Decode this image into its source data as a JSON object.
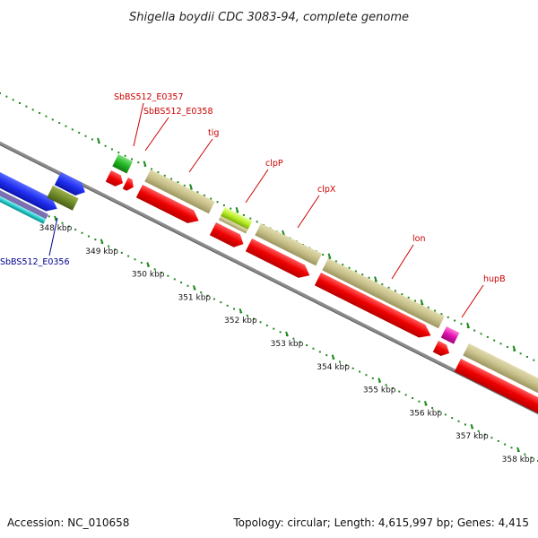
{
  "title": "Shigella boydii CDC 3083-94, complete genome",
  "footer": {
    "accession": "Accession: NC_010658",
    "summary": "Topology: circular; Length: 4,615,997 bp; Genes: 4,415"
  },
  "colors": {
    "tick": "#1f8a1f",
    "backbone": "#8c8c8c",
    "label_red": "#cc0000",
    "label_blue": "#00008b"
  },
  "ticks": [
    {
      "label": "348 kbp"
    },
    {
      "label": "349 kbp"
    },
    {
      "label": "350 kbp"
    },
    {
      "label": "351 kbp"
    },
    {
      "label": "352 kbp"
    },
    {
      "label": "353 kbp"
    },
    {
      "label": "354 kbp"
    },
    {
      "label": "355 kbp"
    },
    {
      "label": "356 kbp"
    },
    {
      "label": "357 kbp"
    },
    {
      "label": "358 kbp"
    }
  ],
  "gene_labels": [
    {
      "text": "SbBS512_E0357",
      "color": "#cc0000"
    },
    {
      "text": "SbBS512_E0358",
      "color": "#cc0000"
    },
    {
      "text": "tig",
      "color": "#cc0000"
    },
    {
      "text": "clpP",
      "color": "#cc0000"
    },
    {
      "text": "clpX",
      "color": "#cc0000"
    },
    {
      "text": "lon",
      "color": "#cc0000"
    },
    {
      "text": "hupB",
      "color": "#cc0000"
    },
    {
      "text": "SbBS512_E0356",
      "color": "#00008b"
    }
  ]
}
